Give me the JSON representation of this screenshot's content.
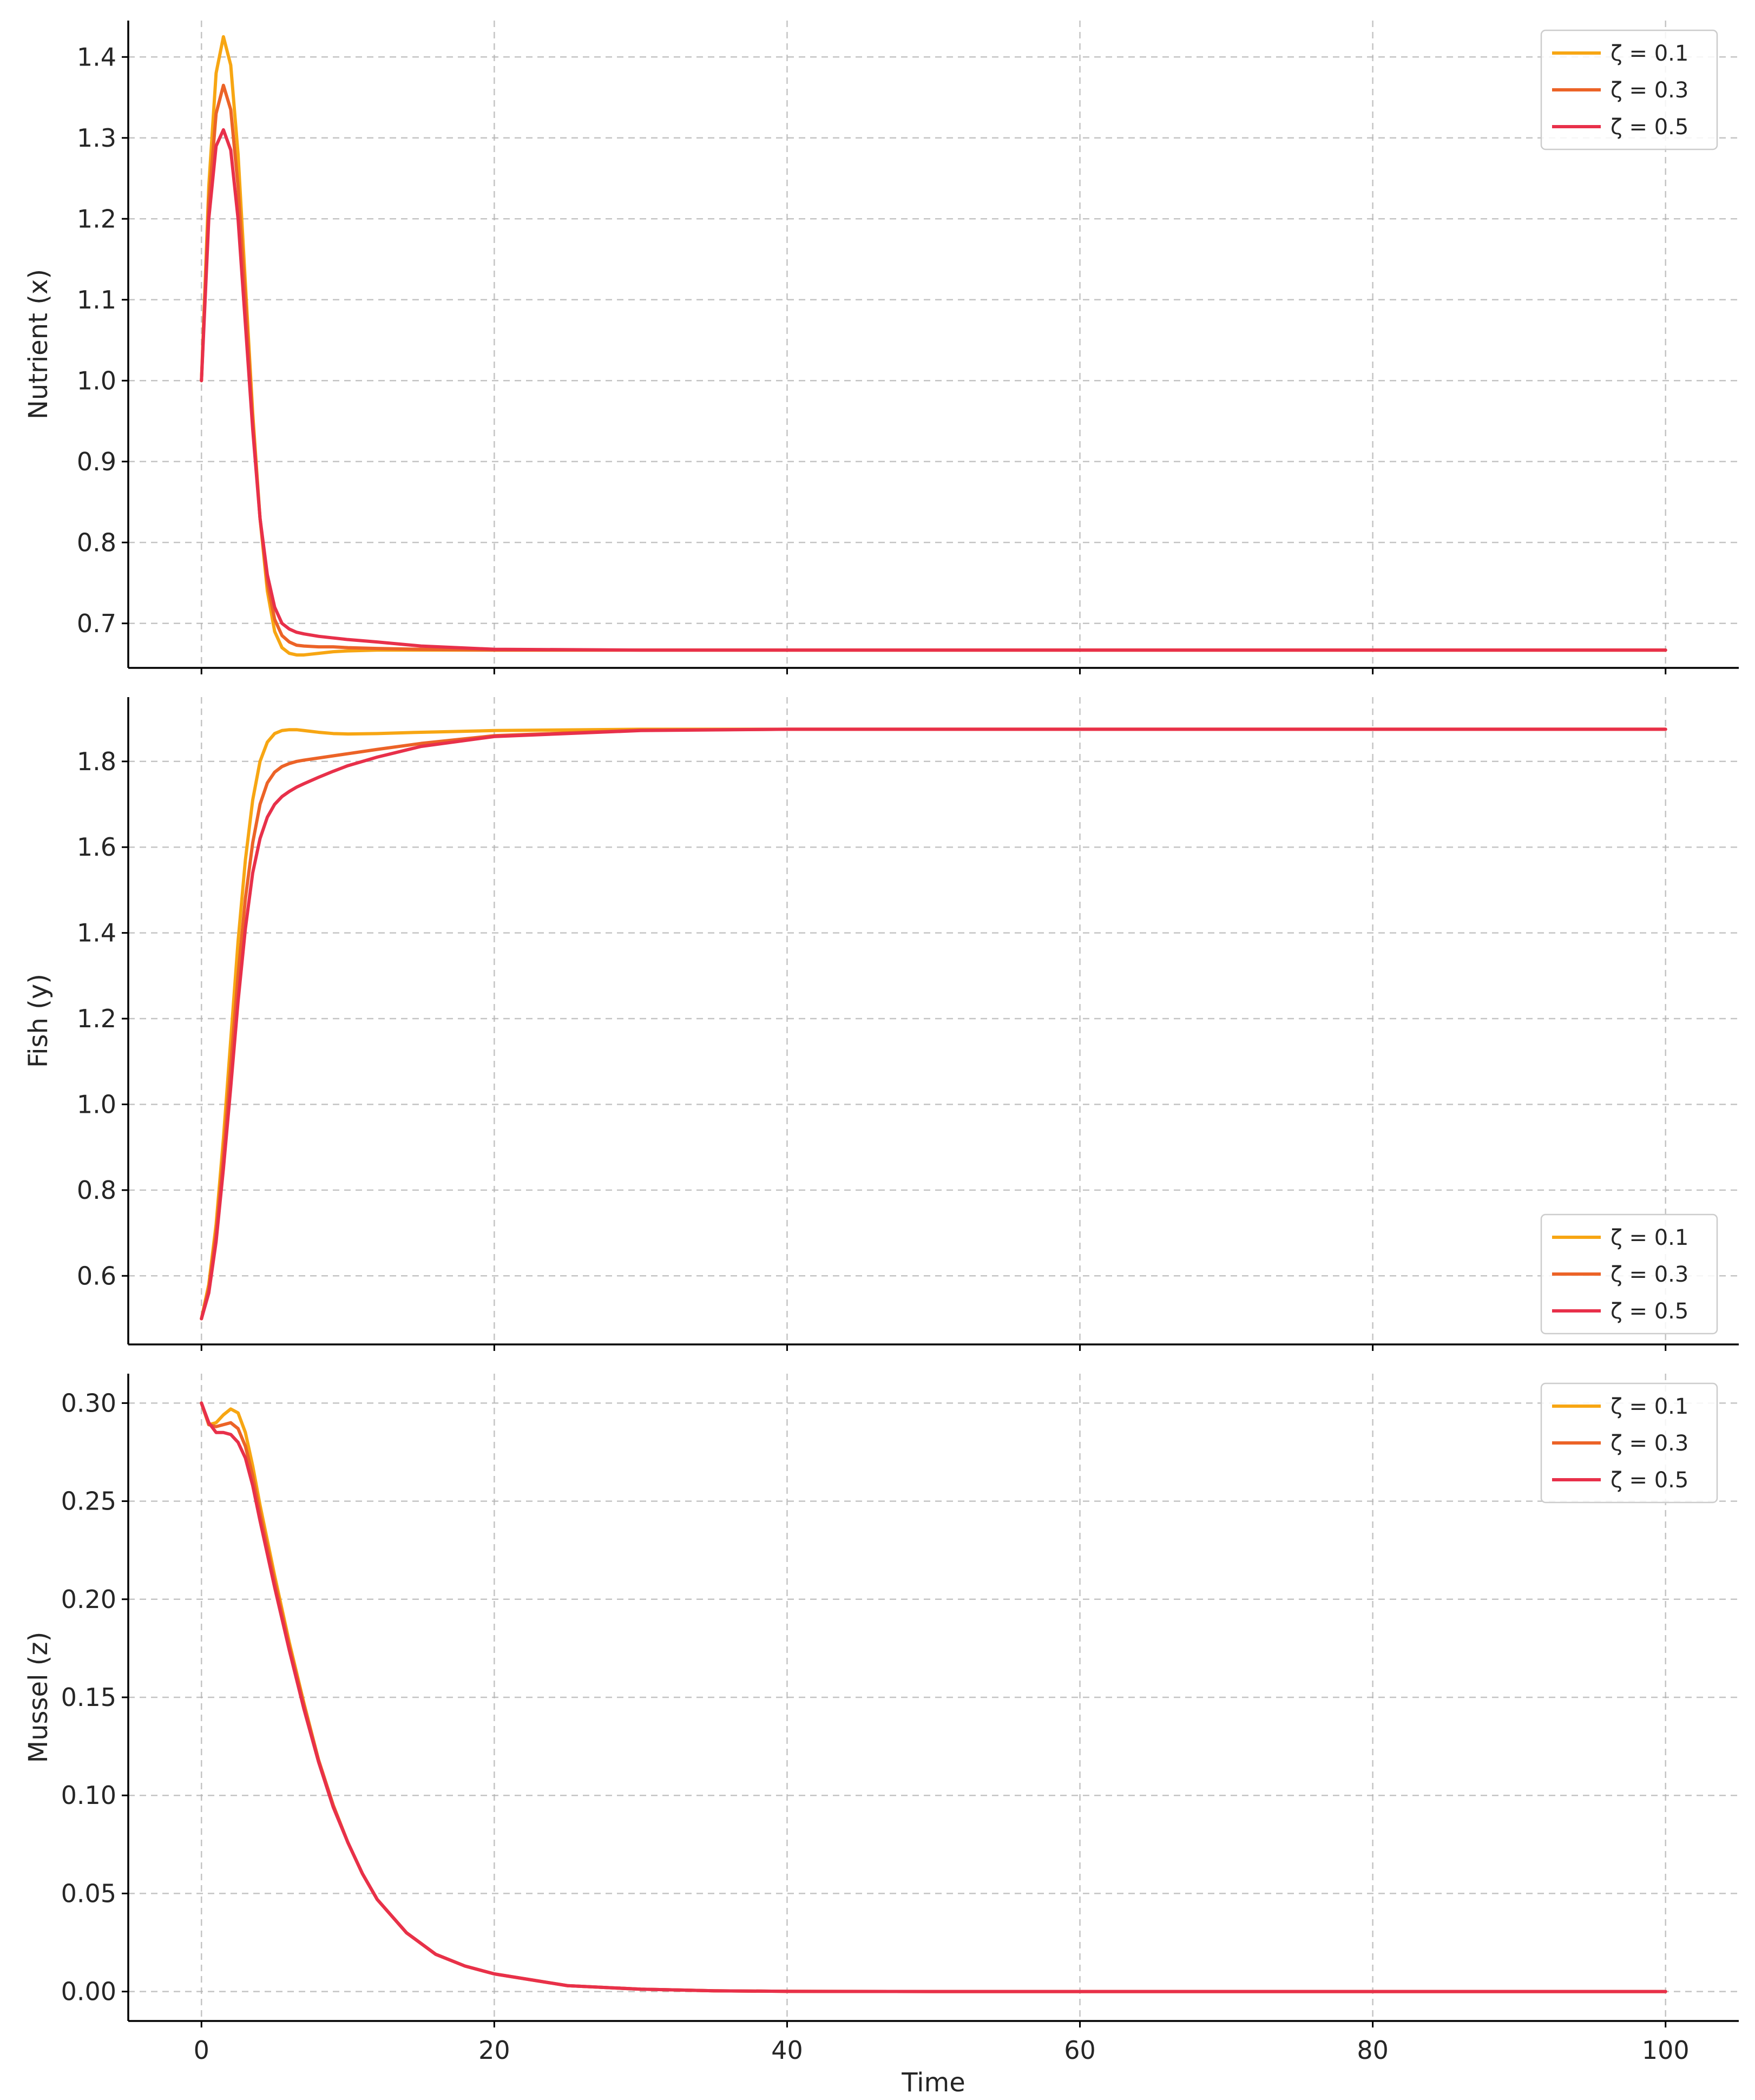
{
  "colors": {
    "zeta_0_1": "#f7a613",
    "zeta_0_3": "#ec6327",
    "zeta_0_5": "#e8304a"
  },
  "chart_data": [
    {
      "type": "line",
      "ylabel": "Nutrient (x)",
      "xlabel": "",
      "xlim": [
        -5,
        105
      ],
      "ylim": [
        0.645,
        1.445
      ],
      "xticks": [
        0,
        20,
        40,
        60,
        80,
        100
      ],
      "xtick_labels": [
        "",
        "",
        "",
        "",
        "",
        ""
      ],
      "yticks": [
        0.7,
        0.8,
        0.9,
        1.0,
        1.1,
        1.2,
        1.3,
        1.4
      ],
      "ytick_labels": [
        "0.7",
        "0.8",
        "0.9",
        "1.0",
        "1.1",
        "1.2",
        "1.3",
        "1.4"
      ],
      "grid": true,
      "legend_position": "top-right",
      "series": [
        {
          "name": "ζ = 0.1",
          "color": "#f7a613",
          "x": [
            0,
            0.5,
            1,
            1.5,
            2,
            2.5,
            3,
            3.5,
            4,
            4.5,
            5,
            5.5,
            6,
            6.5,
            7,
            8,
            9,
            10,
            12,
            15,
            20,
            30,
            40,
            50,
            60,
            70,
            80,
            90,
            100
          ],
          "y": [
            1.0,
            1.24,
            1.38,
            1.425,
            1.39,
            1.28,
            1.12,
            0.96,
            0.83,
            0.74,
            0.69,
            0.67,
            0.663,
            0.661,
            0.661,
            0.663,
            0.665,
            0.666,
            0.667,
            0.667,
            0.667,
            0.667,
            0.667,
            0.667,
            0.667,
            0.667,
            0.667,
            0.667,
            0.667
          ]
        },
        {
          "name": "ζ = 0.3",
          "color": "#ec6327",
          "x": [
            0,
            0.5,
            1,
            1.5,
            2,
            2.5,
            3,
            3.5,
            4,
            4.5,
            5,
            5.5,
            6,
            6.5,
            7,
            8,
            9,
            10,
            12,
            15,
            20,
            30,
            40,
            50,
            60,
            70,
            80,
            90,
            100
          ],
          "y": [
            1.0,
            1.22,
            1.33,
            1.365,
            1.335,
            1.24,
            1.1,
            0.95,
            0.83,
            0.75,
            0.705,
            0.685,
            0.677,
            0.673,
            0.672,
            0.671,
            0.671,
            0.67,
            0.669,
            0.668,
            0.667,
            0.667,
            0.667,
            0.667,
            0.667,
            0.667,
            0.667,
            0.667,
            0.667
          ]
        },
        {
          "name": "ζ = 0.5",
          "color": "#e8304a",
          "x": [
            0,
            0.5,
            1,
            1.5,
            2,
            2.5,
            3,
            3.5,
            4,
            4.5,
            5,
            5.5,
            6,
            6.5,
            7,
            8,
            9,
            10,
            12,
            15,
            20,
            30,
            40,
            50,
            60,
            70,
            80,
            90,
            100
          ],
          "y": [
            1.0,
            1.2,
            1.29,
            1.31,
            1.285,
            1.2,
            1.07,
            0.94,
            0.83,
            0.76,
            0.72,
            0.7,
            0.693,
            0.689,
            0.687,
            0.684,
            0.682,
            0.68,
            0.677,
            0.672,
            0.668,
            0.667,
            0.667,
            0.667,
            0.667,
            0.667,
            0.667,
            0.667,
            0.667
          ]
        }
      ]
    },
    {
      "type": "line",
      "ylabel": "Fish (y)",
      "xlabel": "",
      "xlim": [
        -5,
        105
      ],
      "ylim": [
        0.44,
        1.95
      ],
      "xticks": [
        0,
        20,
        40,
        60,
        80,
        100
      ],
      "xtick_labels": [
        "",
        "",
        "",
        "",
        "",
        ""
      ],
      "yticks": [
        0.6,
        0.8,
        1.0,
        1.2,
        1.4,
        1.6,
        1.8
      ],
      "ytick_labels": [
        "0.6",
        "0.8",
        "1.0",
        "1.2",
        "1.4",
        "1.6",
        "1.8"
      ],
      "grid": true,
      "legend_position": "bottom-right",
      "series": [
        {
          "name": "ζ = 0.1",
          "color": "#f7a613",
          "x": [
            0,
            0.5,
            1,
            1.5,
            2,
            2.5,
            3,
            3.5,
            4,
            4.5,
            5,
            5.5,
            6,
            6.5,
            7,
            8,
            9,
            10,
            12,
            15,
            20,
            30,
            40,
            50,
            60,
            70,
            80,
            90,
            100
          ],
          "y": [
            0.5,
            0.58,
            0.72,
            0.92,
            1.15,
            1.38,
            1.57,
            1.71,
            1.8,
            1.845,
            1.865,
            1.872,
            1.874,
            1.874,
            1.872,
            1.868,
            1.865,
            1.864,
            1.865,
            1.868,
            1.872,
            1.875,
            1.875,
            1.875,
            1.875,
            1.875,
            1.875,
            1.875,
            1.875
          ]
        },
        {
          "name": "ζ = 0.3",
          "color": "#ec6327",
          "x": [
            0,
            0.5,
            1,
            1.5,
            2,
            2.5,
            3,
            3.5,
            4,
            4.5,
            5,
            5.5,
            6,
            6.5,
            7,
            8,
            9,
            10,
            12,
            15,
            20,
            30,
            40,
            50,
            60,
            70,
            80,
            90,
            100
          ],
          "y": [
            0.5,
            0.57,
            0.7,
            0.88,
            1.09,
            1.3,
            1.48,
            1.61,
            1.7,
            1.75,
            1.775,
            1.788,
            1.795,
            1.8,
            1.803,
            1.808,
            1.813,
            1.818,
            1.828,
            1.842,
            1.86,
            1.873,
            1.875,
            1.875,
            1.875,
            1.875,
            1.875,
            1.875,
            1.875
          ]
        },
        {
          "name": "ζ = 0.5",
          "color": "#e8304a",
          "x": [
            0,
            0.5,
            1,
            1.5,
            2,
            2.5,
            3,
            3.5,
            4,
            4.5,
            5,
            5.5,
            6,
            6.5,
            7,
            8,
            9,
            10,
            12,
            15,
            20,
            30,
            40,
            50,
            60,
            70,
            80,
            90,
            100
          ],
          "y": [
            0.5,
            0.56,
            0.68,
            0.85,
            1.04,
            1.24,
            1.41,
            1.54,
            1.62,
            1.67,
            1.7,
            1.718,
            1.73,
            1.74,
            1.748,
            1.763,
            1.777,
            1.79,
            1.81,
            1.835,
            1.858,
            1.872,
            1.875,
            1.875,
            1.875,
            1.875,
            1.875,
            1.875,
            1.875
          ]
        }
      ]
    },
    {
      "type": "line",
      "ylabel": "Mussel (z)",
      "xlabel": "Time",
      "xlim": [
        -5,
        105
      ],
      "ylim": [
        -0.015,
        0.315
      ],
      "xticks": [
        0,
        20,
        40,
        60,
        80,
        100
      ],
      "xtick_labels": [
        "0",
        "20",
        "40",
        "60",
        "80",
        "100"
      ],
      "yticks": [
        0.0,
        0.05,
        0.1,
        0.15,
        0.2,
        0.25,
        0.3
      ],
      "ytick_labels": [
        "0.00",
        "0.05",
        "0.10",
        "0.15",
        "0.20",
        "0.25",
        "0.30"
      ],
      "grid": true,
      "legend_position": "top-right",
      "series": [
        {
          "name": "ζ = 0.1",
          "color": "#f7a613",
          "x": [
            0,
            0.5,
            1,
            1.5,
            2,
            2.5,
            3,
            3.5,
            4,
            5,
            6,
            7,
            8,
            9,
            10,
            11,
            12,
            14,
            16,
            18,
            20,
            25,
            30,
            35,
            40,
            50,
            60,
            70,
            80,
            90,
            100
          ],
          "y": [
            0.3,
            0.289,
            0.29,
            0.294,
            0.297,
            0.295,
            0.285,
            0.268,
            0.248,
            0.212,
            0.178,
            0.147,
            0.118,
            0.095,
            0.076,
            0.06,
            0.047,
            0.03,
            0.019,
            0.013,
            0.009,
            0.003,
            0.0012,
            0.0004,
            0.0001,
            0.0,
            0.0,
            0.0,
            0.0,
            0.0,
            0.0
          ]
        },
        {
          "name": "ζ = 0.3",
          "color": "#ec6327",
          "x": [
            0,
            0.5,
            1,
            1.5,
            2,
            2.5,
            3,
            3.5,
            4,
            5,
            6,
            7,
            8,
            9,
            10,
            11,
            12,
            14,
            16,
            18,
            20,
            25,
            30,
            35,
            40,
            50,
            60,
            70,
            80,
            90,
            100
          ],
          "y": [
            0.3,
            0.289,
            0.288,
            0.289,
            0.29,
            0.287,
            0.278,
            0.263,
            0.244,
            0.209,
            0.176,
            0.146,
            0.118,
            0.095,
            0.076,
            0.06,
            0.047,
            0.03,
            0.019,
            0.013,
            0.009,
            0.003,
            0.0012,
            0.0004,
            0.0001,
            0.0,
            0.0,
            0.0,
            0.0,
            0.0,
            0.0
          ]
        },
        {
          "name": "ζ = 0.5",
          "color": "#e8304a",
          "x": [
            0,
            0.5,
            1,
            1.5,
            2,
            2.5,
            3,
            3.5,
            4,
            5,
            6,
            7,
            8,
            9,
            10,
            11,
            12,
            14,
            16,
            18,
            20,
            25,
            30,
            35,
            40,
            50,
            60,
            70,
            80,
            90,
            100
          ],
          "y": [
            0.3,
            0.29,
            0.285,
            0.285,
            0.284,
            0.28,
            0.272,
            0.258,
            0.24,
            0.206,
            0.174,
            0.144,
            0.117,
            0.094,
            0.076,
            0.06,
            0.047,
            0.03,
            0.019,
            0.013,
            0.009,
            0.003,
            0.0012,
            0.0004,
            0.0001,
            0.0,
            0.0,
            0.0,
            0.0,
            0.0,
            0.0
          ]
        }
      ]
    }
  ]
}
